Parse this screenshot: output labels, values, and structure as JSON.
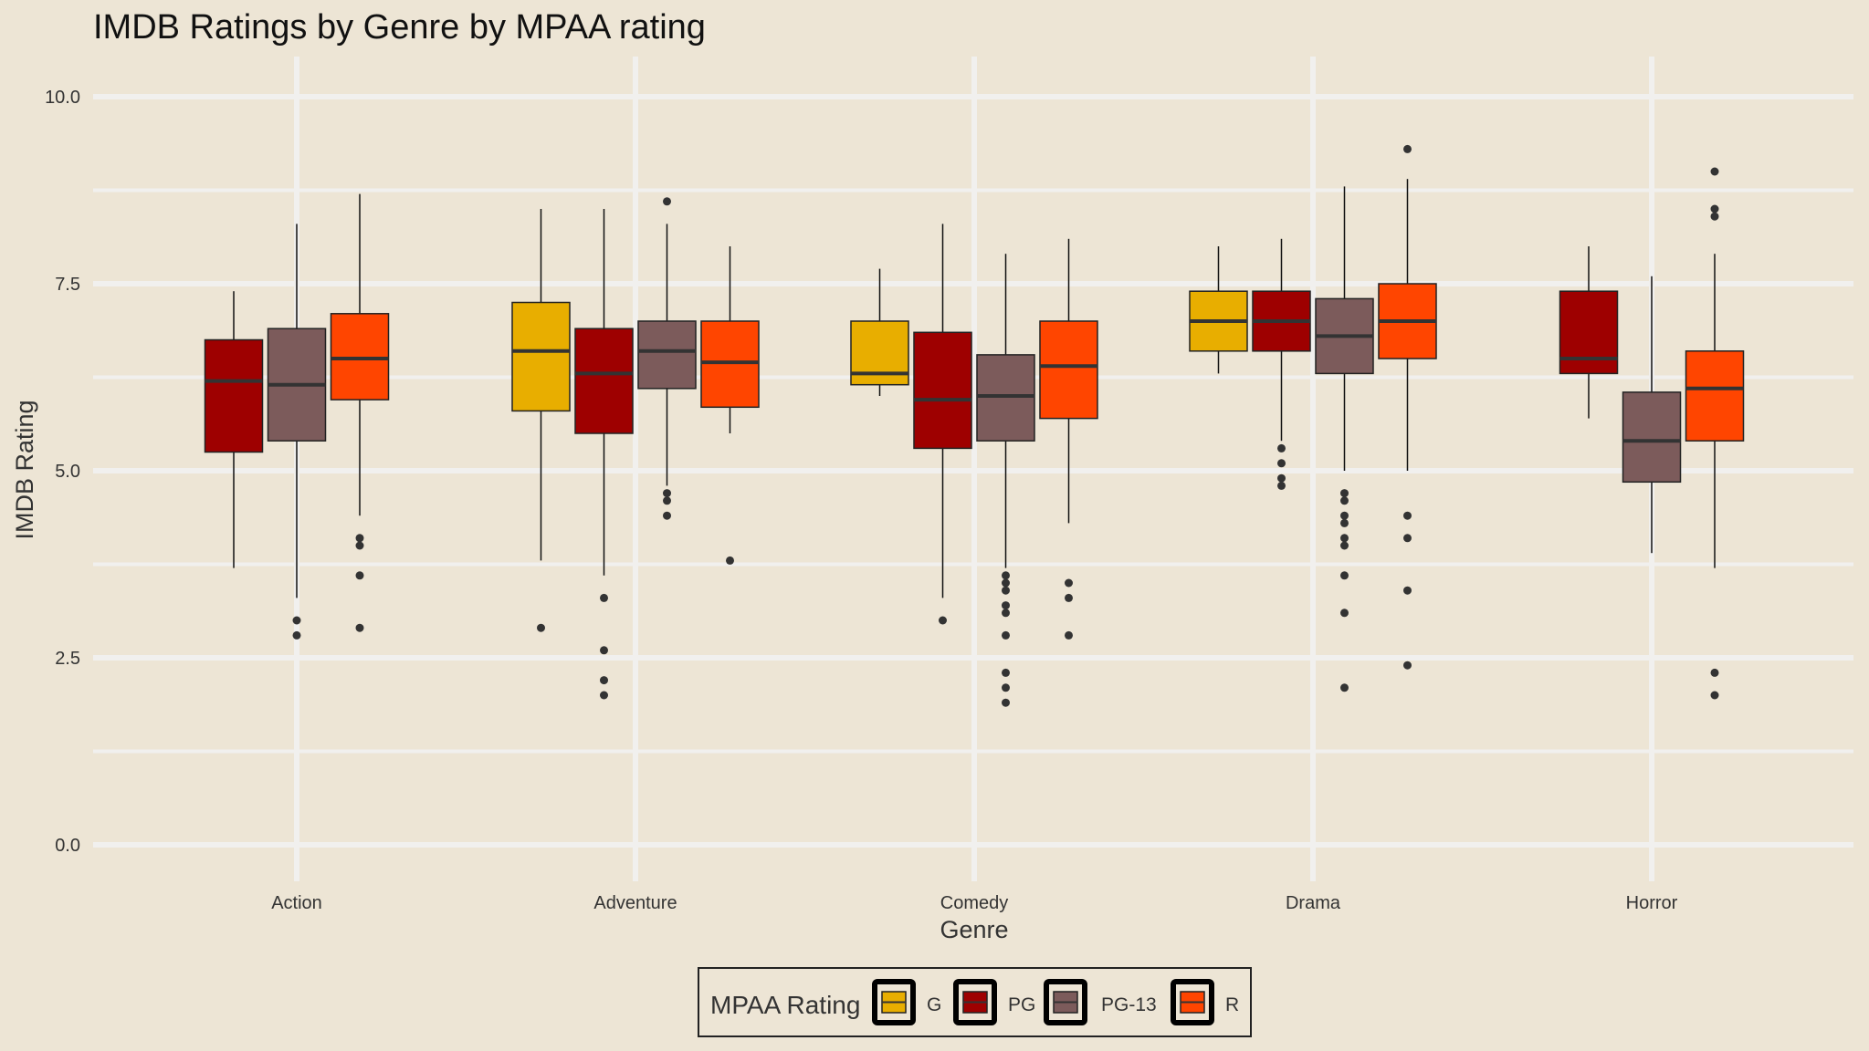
{
  "chart_data": {
    "type": "boxplot",
    "title": "IMDB Ratings by Genre by MPAA rating",
    "xlabel": "Genre",
    "ylabel": "IMDB Rating",
    "ylim": [
      0,
      10
    ],
    "yticks": [
      "0.0",
      "2.5",
      "5.0",
      "7.5",
      "10.0"
    ],
    "categories": [
      "Action",
      "Adventure",
      "Comedy",
      "Drama",
      "Horror"
    ],
    "grid": true,
    "legend": {
      "title": "MPAA Rating",
      "position": "bottom",
      "items": [
        {
          "label": "G",
          "color": "#e8ae00"
        },
        {
          "label": "PG",
          "color": "#9e0000"
        },
        {
          "label": "PG-13",
          "color": "#7c5b5b"
        },
        {
          "label": "R",
          "color": "#ff4500"
        }
      ]
    },
    "series": [
      {
        "name": "G",
        "color": "#e8ae00",
        "boxes": [
          null,
          {
            "category": "Adventure",
            "whisker_low": 3.8,
            "q1": 5.8,
            "median": 6.6,
            "q3": 7.25,
            "whisker_high": 8.5,
            "outliers": [
              2.9
            ]
          },
          {
            "category": "Comedy",
            "whisker_low": 6.0,
            "q1": 6.15,
            "median": 6.3,
            "q3": 7.0,
            "whisker_high": 7.7,
            "outliers": []
          },
          {
            "category": "Drama",
            "whisker_low": 6.3,
            "q1": 6.6,
            "median": 7.0,
            "q3": 7.4,
            "whisker_high": 8.0,
            "outliers": []
          },
          null
        ]
      },
      {
        "name": "PG",
        "color": "#9e0000",
        "boxes": [
          {
            "category": "Action",
            "whisker_low": 3.7,
            "q1": 5.25,
            "median": 6.2,
            "q3": 6.75,
            "whisker_high": 7.4,
            "outliers": []
          },
          {
            "category": "Adventure",
            "whisker_low": 3.6,
            "q1": 5.5,
            "median": 6.3,
            "q3": 6.9,
            "whisker_high": 8.5,
            "outliers": [
              3.3,
              2.6,
              2.2,
              2.0
            ]
          },
          {
            "category": "Comedy",
            "whisker_low": 3.3,
            "q1": 5.3,
            "median": 5.95,
            "q3": 6.85,
            "whisker_high": 8.3,
            "outliers": [
              3.0
            ]
          },
          {
            "category": "Drama",
            "whisker_low": 5.4,
            "q1": 6.6,
            "median": 7.0,
            "q3": 7.4,
            "whisker_high": 8.1,
            "outliers": [
              5.3,
              5.1,
              4.9,
              4.8
            ]
          },
          {
            "category": "Horror",
            "whisker_low": 5.7,
            "q1": 6.3,
            "median": 6.5,
            "q3": 7.4,
            "whisker_high": 8.0,
            "outliers": []
          }
        ]
      },
      {
        "name": "PG-13",
        "color": "#7c5b5b",
        "boxes": [
          {
            "category": "Action",
            "whisker_low": 3.3,
            "q1": 5.4,
            "median": 6.15,
            "q3": 6.9,
            "whisker_high": 8.3,
            "outliers": [
              3.0,
              2.8
            ]
          },
          {
            "category": "Adventure",
            "whisker_low": 4.8,
            "q1": 6.1,
            "median": 6.6,
            "q3": 7.0,
            "whisker_high": 8.3,
            "outliers": [
              8.6,
              4.7,
              4.6,
              4.4
            ]
          },
          {
            "category": "Comedy",
            "whisker_low": 3.7,
            "q1": 5.4,
            "median": 6.0,
            "q3": 6.55,
            "whisker_high": 7.9,
            "outliers": [
              3.6,
              3.5,
              3.4,
              3.2,
              3.1,
              2.8,
              2.3,
              2.1,
              1.9
            ]
          },
          {
            "category": "Drama",
            "whisker_low": 5.0,
            "q1": 6.3,
            "median": 6.8,
            "q3": 7.3,
            "whisker_high": 8.8,
            "outliers": [
              4.7,
              4.6,
              4.4,
              4.3,
              4.1,
              4.0,
              3.6,
              3.1,
              2.1
            ]
          },
          {
            "category": "Horror",
            "whisker_low": 3.9,
            "q1": 4.85,
            "median": 5.4,
            "q3": 6.05,
            "whisker_high": 7.6,
            "outliers": []
          }
        ]
      },
      {
        "name": "R",
        "color": "#ff4500",
        "boxes": [
          {
            "category": "Action",
            "whisker_low": 4.4,
            "q1": 5.95,
            "median": 6.5,
            "q3": 7.1,
            "whisker_high": 8.7,
            "outliers": [
              4.1,
              4.0,
              3.6,
              2.9
            ]
          },
          {
            "category": "Adventure",
            "whisker_low": 5.5,
            "q1": 5.85,
            "median": 6.45,
            "q3": 7.0,
            "whisker_high": 8.0,
            "outliers": [
              3.8
            ]
          },
          {
            "category": "Comedy",
            "whisker_low": 4.3,
            "q1": 5.7,
            "median": 6.4,
            "q3": 7.0,
            "whisker_high": 8.1,
            "outliers": [
              3.5,
              3.3,
              2.8
            ]
          },
          {
            "category": "Drama",
            "whisker_low": 5.0,
            "q1": 6.5,
            "median": 7.0,
            "q3": 7.5,
            "whisker_high": 8.9,
            "outliers": [
              9.3,
              4.4,
              4.1,
              3.4,
              2.4
            ]
          },
          {
            "category": "Horror",
            "whisker_low": 3.7,
            "q1": 5.4,
            "median": 6.1,
            "q3": 6.6,
            "whisker_high": 7.9,
            "outliers": [
              9.0,
              8.5,
              8.4,
              2.3,
              2.0
            ]
          }
        ]
      }
    ]
  }
}
